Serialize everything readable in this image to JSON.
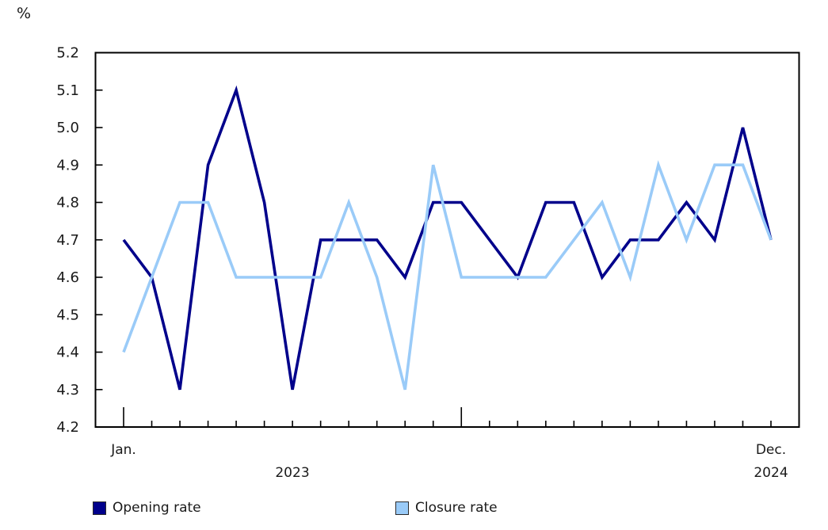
{
  "unit_label": "%",
  "chart_data": {
    "type": "line",
    "title": "",
    "ylabel": "%",
    "xlabel": "",
    "ylim": [
      4.2,
      5.2
    ],
    "ytick_step": 0.1,
    "ytick_labels": [
      "4.2",
      "4.3",
      "4.4",
      "4.5",
      "4.6",
      "4.7",
      "4.8",
      "4.9",
      "5.0",
      "5.1",
      "5.2"
    ],
    "grid": false,
    "legend_position": "bottom",
    "categories": [
      "2023-01",
      "2023-02",
      "2023-03",
      "2023-04",
      "2023-05",
      "2023-06",
      "2023-07",
      "2023-08",
      "2023-09",
      "2023-10",
      "2023-11",
      "2023-12",
      "2024-01",
      "2024-02",
      "2024-03",
      "2024-04",
      "2024-05",
      "2024-06",
      "2024-07",
      "2024-08",
      "2024-09",
      "2024-10",
      "2024-11",
      "2024-12"
    ],
    "xaxis": {
      "first_month": "Jan.",
      "left_year": "2023",
      "last_month": "Dec.",
      "right_year": "2024",
      "major_tick_indices": [
        0,
        12
      ]
    },
    "series": [
      {
        "name": "Opening rate",
        "color": "#00008B",
        "values": [
          4.7,
          4.6,
          4.3,
          4.9,
          5.1,
          4.8,
          4.3,
          4.7,
          4.7,
          4.7,
          4.6,
          4.8,
          4.8,
          4.7,
          4.6,
          4.8,
          4.8,
          4.6,
          4.7,
          4.7,
          4.8,
          4.7,
          5.0,
          4.7
        ]
      },
      {
        "name": "Closure rate",
        "color": "#9ACBF8",
        "values": [
          4.4,
          4.6,
          4.8,
          4.8,
          4.6,
          4.6,
          4.6,
          4.6,
          4.8,
          4.6,
          4.3,
          4.9,
          4.6,
          4.6,
          4.6,
          4.6,
          4.7,
          4.8,
          4.6,
          4.9,
          4.7,
          4.9,
          4.9,
          4.7
        ]
      }
    ],
    "colors": {
      "axis": "#000000",
      "text": "#1a1a1a",
      "background": "#ffffff"
    }
  }
}
